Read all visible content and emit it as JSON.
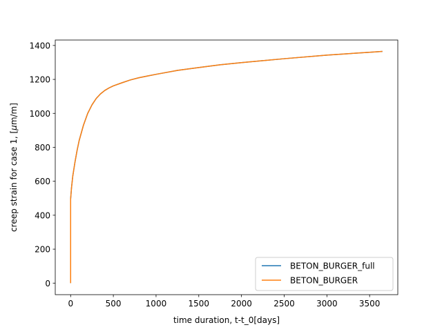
{
  "chart_data": {
    "type": "line",
    "title": "",
    "xlabel": "time duration, t-t_0[days]",
    "ylabel_prefix": "creep strain for case 1, [",
    "ylabel_mu": "μ",
    "ylabel_suffix": "m/m]",
    "xlim": [
      -180,
      3830
    ],
    "ylim": [
      -68,
      1432
    ],
    "xticks": [
      0,
      500,
      1000,
      1500,
      2000,
      2500,
      3000,
      3500
    ],
    "yticks": [
      0,
      200,
      400,
      600,
      800,
      1000,
      1200,
      1400
    ],
    "grid": false,
    "legend_position": "lower right",
    "series": [
      {
        "name": "BETON_BURGER_full",
        "color": "#1f77b4",
        "x": [
          0,
          0,
          10,
          25,
          50,
          75,
          100,
          150,
          200,
          250,
          300,
          350,
          400,
          450,
          500,
          600,
          700,
          800,
          900,
          1000,
          1250,
          1500,
          1750,
          2000,
          2500,
          3000,
          3500,
          3650
        ],
        "y": [
          0,
          495,
          560,
          630,
          710,
          780,
          840,
          930,
          1000,
          1050,
          1088,
          1115,
          1135,
          1150,
          1162,
          1180,
          1197,
          1210,
          1220,
          1230,
          1253,
          1270,
          1286,
          1299,
          1322,
          1343,
          1360,
          1365
        ]
      },
      {
        "name": "BETON_BURGER",
        "color": "#ff7f0e",
        "x": [
          0,
          0,
          10,
          25,
          50,
          75,
          100,
          150,
          200,
          250,
          300,
          350,
          400,
          450,
          500,
          600,
          700,
          800,
          900,
          1000,
          1250,
          1500,
          1750,
          2000,
          2500,
          3000,
          3500,
          3650
        ],
        "y": [
          0,
          495,
          560,
          630,
          710,
          780,
          840,
          930,
          1000,
          1050,
          1088,
          1115,
          1135,
          1150,
          1162,
          1180,
          1197,
          1210,
          1220,
          1230,
          1253,
          1270,
          1286,
          1299,
          1322,
          1343,
          1360,
          1365
        ]
      }
    ]
  }
}
